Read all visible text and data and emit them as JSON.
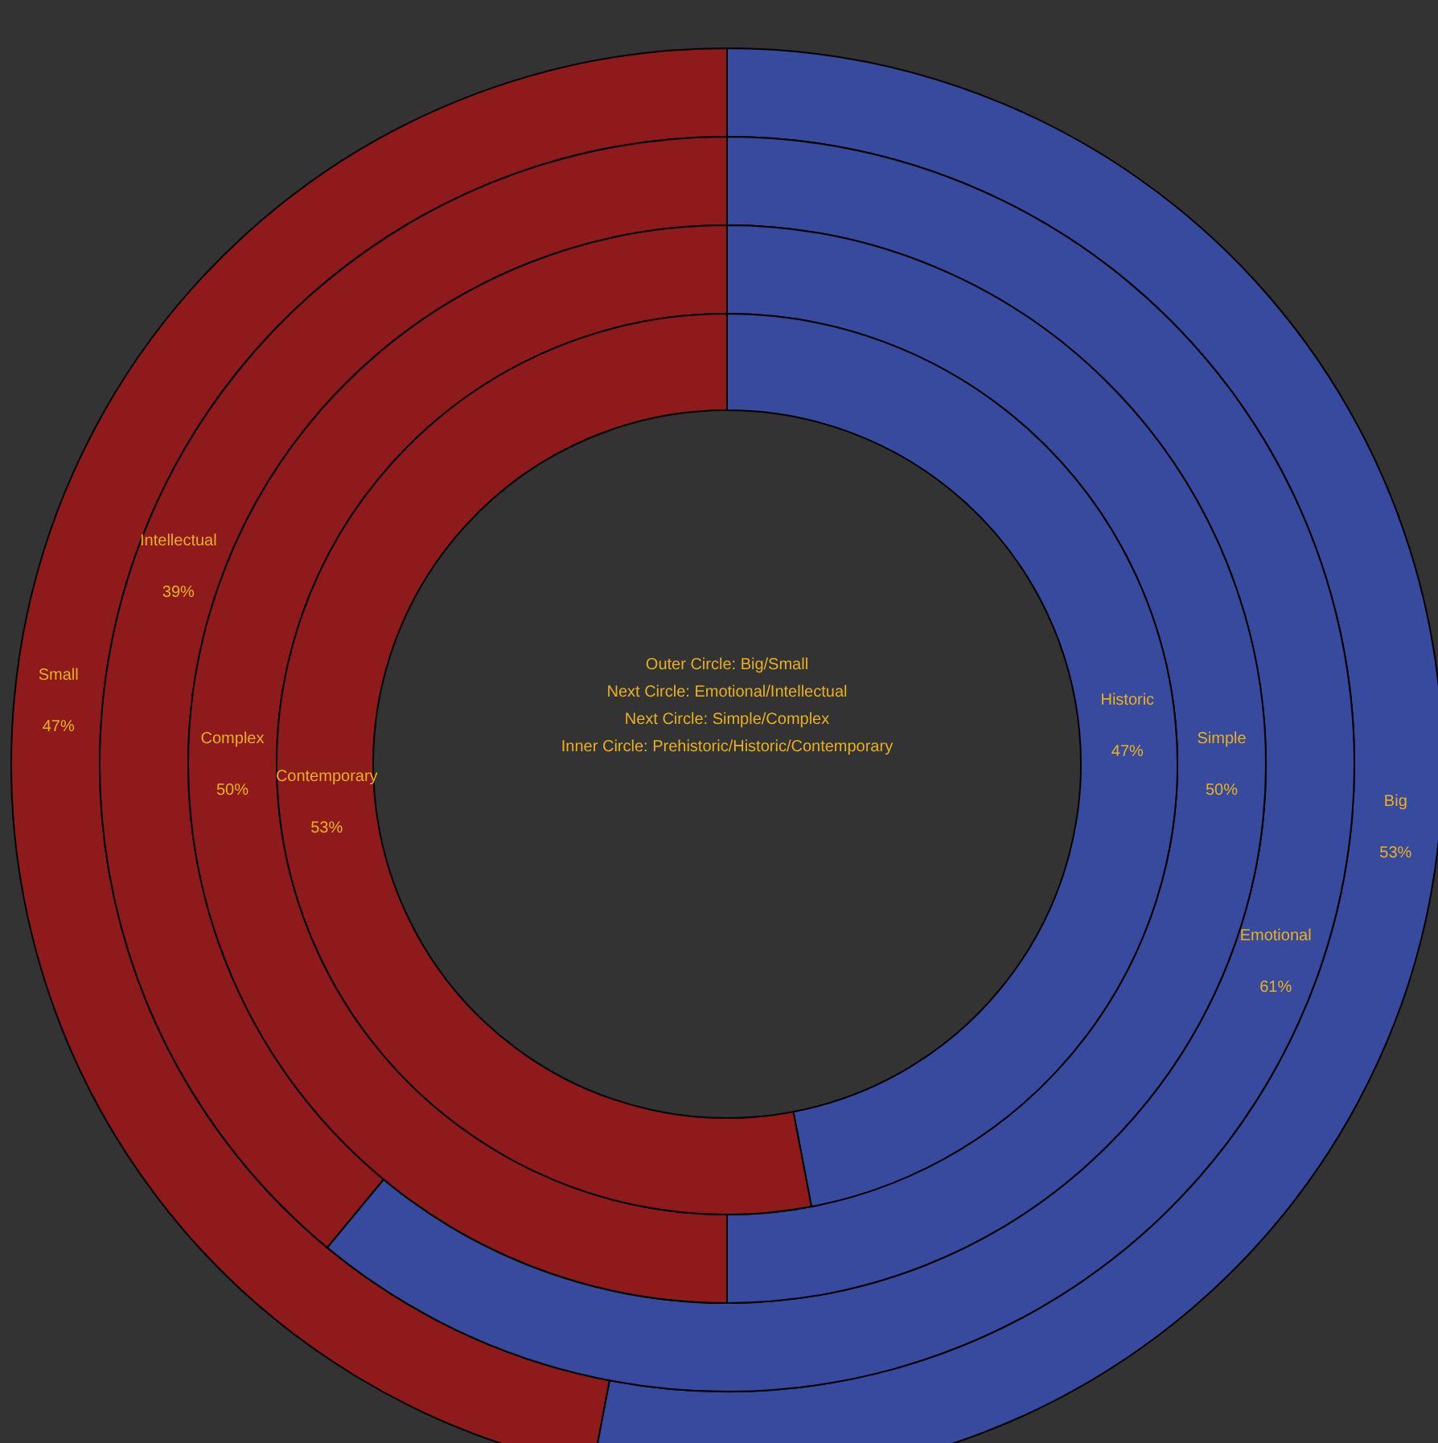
{
  "chart_data": [
    {
      "type": "donut",
      "categories": [
        "Big",
        "Small"
      ],
      "values": [
        53,
        47
      ],
      "colors": [
        "#374a9e",
        "#8e1a1c"
      ],
      "value_labels": [
        "53%",
        "47%"
      ],
      "legend": false,
      "annotations": [
        "Outer Circle:  Big/Small",
        "Next Circle: Emotional/Intellectual",
        "Next Circle: Simple/Complex",
        "Inner Circle: Prehistoric/Historic/Contemporary"
      ]
    },
    {
      "type": "donut",
      "categories": [
        "Emotional",
        "Intellectual"
      ],
      "values": [
        61,
        39
      ],
      "colors": [
        "#374a9e",
        "#8e1a1c"
      ],
      "value_labels": [
        "61%",
        "39%"
      ],
      "legend": false
    },
    {
      "type": "donut",
      "categories": [
        "Simple",
        "Complex"
      ],
      "values": [
        50,
        50
      ],
      "colors": [
        "#374a9e",
        "#8e1a1c"
      ],
      "value_labels": [
        "50%",
        "50%"
      ],
      "legend": false
    },
    {
      "type": "donut",
      "categories": [
        "Historic",
        "Contemporary"
      ],
      "values": [
        47,
        53
      ],
      "colors": [
        "#374a9e",
        "#8e1a1c"
      ],
      "value_labels": [
        "47%",
        "53%"
      ],
      "legend": false
    }
  ]
}
